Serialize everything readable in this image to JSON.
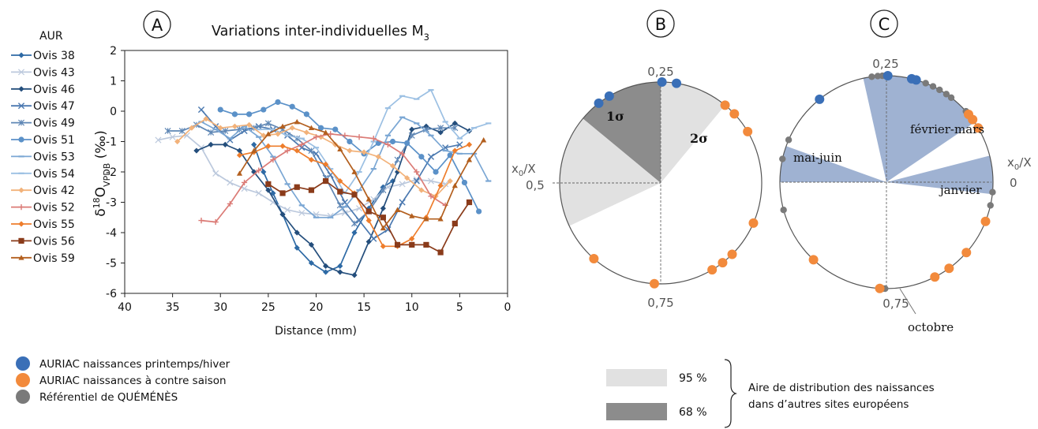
{
  "panel_a": {
    "letter": "A",
    "title": "Variations inter-individuelles M",
    "title_sub": "3",
    "legend_header": "AUR",
    "ylabel_delta": "δ",
    "ylabel_sup": "18",
    "ylabel_o": "O",
    "ylabel_sub": "VPDB",
    "ylabel_unit": " (‰)"
  },
  "panel_b": {
    "letter": "B",
    "label_1s": "1σ",
    "label_2s": "2σ"
  },
  "panel_c": {
    "letter": "C",
    "label_fevmars": "février-mars",
    "label_maijuin": "mai-juin",
    "label_janvier": "janvier",
    "label_octobre": "octobre"
  },
  "circle_labels": {
    "top": "0,25",
    "bottom": "0,75",
    "left_val": "0,5",
    "right_val": "0",
    "x0x_prefix": "x",
    "x0x_sub": "0",
    "x0x_suffix": "/X"
  },
  "colors": {
    "blue_dot": "#3a6fb7",
    "orange_dot": "#f28a3c",
    "grey_dot": "#7a7a7a",
    "light_sector": "#e1e1e1",
    "dark_sector": "#8c8c8c",
    "month_sector": "#9fb2d2"
  },
  "bottom_legend": {
    "blue": "AURIAC naissances printemps/hiver",
    "orange": "AURIAC naissances à contre saison",
    "grey": "Référentiel de QUÉMÉNÈS"
  },
  "area_legend": {
    "p95": "95 %",
    "p68": "68 %",
    "line1": "Aire de distribution des naissances",
    "line2": "dans d’autres sites européens"
  },
  "chart_data": [
    {
      "type": "line",
      "xlabel": "Distance (mm)",
      "xlim": [
        40,
        0
      ],
      "x_reversed": true,
      "ylim": [
        -6,
        2
      ],
      "xticks": [
        40,
        35,
        30,
        25,
        20,
        15,
        10,
        5,
        0
      ],
      "yticks": [
        2,
        1,
        0,
        -1,
        -2,
        -3,
        -4,
        -5,
        -6
      ],
      "legend_placement": "left",
      "grid": false,
      "series": [
        {
          "name": "Ovis 38",
          "color": "#2e6aa5",
          "marker": "diamond",
          "x": [
            26.5,
            25.5,
            24.5,
            23.5,
            22,
            20.5,
            19,
            17.5,
            16,
            14.5,
            13,
            12
          ],
          "y": [
            -1.1,
            -2,
            -2.7,
            -3.4,
            -4.5,
            -5,
            -5.3,
            -5.1,
            -4,
            -3.2,
            -2.5,
            -2.3
          ]
        },
        {
          "name": "Ovis 43",
          "color": "#bcc9dd",
          "marker": "cross",
          "x": [
            36.5,
            35,
            33.5,
            32,
            30.5,
            29,
            27.5,
            26,
            24.5,
            23,
            21.5,
            20,
            18.5,
            17,
            15.5,
            14,
            12.5,
            11,
            9.5,
            8,
            6.5
          ],
          "y": [
            -0.95,
            -0.85,
            -0.8,
            -1.2,
            -2.05,
            -2.35,
            -2.55,
            -2.7,
            -3,
            -3.25,
            -3.35,
            -3.4,
            -3.45,
            -3.35,
            -3.2,
            -2.9,
            -2.5,
            -2.4,
            -2.25,
            -2.3,
            -2.4
          ]
        },
        {
          "name": "Ovis 46",
          "color": "#244e7c",
          "marker": "diamond",
          "x": [
            32.5,
            31,
            29.5,
            28,
            26.5,
            25,
            23.5,
            22,
            20.5,
            19,
            17.5,
            16,
            14.5,
            13,
            11.5,
            10,
            8.5,
            7,
            5.5,
            4
          ],
          "y": [
            -1.3,
            -1.1,
            -1.1,
            -1.3,
            -2,
            -2.6,
            -3.4,
            -4,
            -4.4,
            -5.1,
            -5.3,
            -5.4,
            -4.3,
            -3.2,
            -2,
            -0.6,
            -0.5,
            -0.7,
            -0.4,
            -0.65
          ]
        },
        {
          "name": "Ovis 47",
          "color": "#4b79b0",
          "marker": "x",
          "x": [
            32,
            30.5,
            29,
            27.5,
            26,
            24.5,
            23,
            21.5,
            20,
            18.5,
            17,
            15.5,
            14,
            12.5,
            11,
            9.5,
            8,
            6.5,
            5
          ],
          "y": [
            0.05,
            -0.5,
            -0.95,
            -0.65,
            -0.5,
            -0.6,
            -0.8,
            -1.2,
            -1.4,
            -2.1,
            -3,
            -3.6,
            -4.2,
            -3.9,
            -3,
            -2.3,
            -1.5,
            -1.2,
            -1.1
          ]
        },
        {
          "name": "Ovis 49",
          "color": "#5f87b5",
          "marker": "star",
          "x": [
            35.5,
            34,
            32.5,
            31,
            29.5,
            28,
            26.5,
            25,
            23.5,
            22,
            20.5,
            19,
            17.5,
            16,
            14.5,
            13,
            11.5,
            10,
            8.5,
            7,
            5.5
          ],
          "y": [
            -0.65,
            -0.65,
            -0.45,
            -0.7,
            -0.65,
            -0.6,
            -0.55,
            -0.4,
            -0.6,
            -0.9,
            -1.3,
            -2.2,
            -3.1,
            -3.7,
            -3.3,
            -2.6,
            -1.6,
            -0.8,
            -0.6,
            -0.55,
            -0.55
          ]
        },
        {
          "name": "Ovis 51",
          "color": "#5b91c8",
          "marker": "circle",
          "x": [
            30,
            28.5,
            27,
            25.5,
            24,
            22.5,
            21,
            19.5,
            18,
            16.5,
            15,
            13.5,
            12,
            10.5,
            9,
            7.5,
            6,
            4.5,
            3
          ],
          "y": [
            0.05,
            -0.1,
            -0.1,
            0.05,
            0.3,
            0.15,
            -0.1,
            -0.55,
            -0.6,
            -1,
            -1.4,
            -1.05,
            -1,
            -1.05,
            -1.5,
            -2,
            -1.45,
            -2.35,
            -3.3
          ]
        },
        {
          "name": "Ovis 53",
          "color": "#7ba7d4",
          "marker": "dash",
          "x": [
            32,
            30.5,
            29,
            27.5,
            26,
            24.5,
            23,
            21.5,
            20,
            18.5,
            17,
            15.5,
            14,
            12.5,
            11,
            9.5,
            8,
            6.5,
            5,
            3.5,
            2
          ],
          "y": [
            -0.35,
            -0.6,
            -0.9,
            -0.5,
            -0.85,
            -1.5,
            -2.4,
            -3.1,
            -3.5,
            -3.5,
            -3.15,
            -2.6,
            -1.9,
            -0.8,
            -0.2,
            -0.4,
            -0.8,
            -1.3,
            -1.4,
            -1.4,
            -2.3
          ]
        },
        {
          "name": "Ovis 54",
          "color": "#9cc0e3",
          "marker": "dash",
          "x": [
            26,
            24.5,
            23,
            21.5,
            20,
            18.5,
            17,
            15.5,
            14,
            12.5,
            11,
            9.5,
            8,
            6.5,
            5,
            3.5,
            2
          ],
          "y": [
            -0.6,
            -0.6,
            -0.8,
            -0.9,
            -1.2,
            -1.9,
            -2.7,
            -2,
            -1,
            0.1,
            0.5,
            0.4,
            0.7,
            -0.35,
            -0.9,
            -0.55,
            -0.4
          ]
        },
        {
          "name": "Ovis 42",
          "color": "#f2b27a",
          "marker": "diamond",
          "x": [
            34.5,
            33,
            31.5,
            30,
            28.5,
            27,
            25.5,
            24,
            22.5,
            21,
            19.5,
            18,
            16.5,
            15,
            13.5,
            12,
            10.5,
            9,
            7.5,
            6
          ],
          "y": [
            -1,
            -0.55,
            -0.25,
            -0.55,
            -0.5,
            -0.45,
            -0.8,
            -0.75,
            -0.55,
            -0.7,
            -0.85,
            -1.1,
            -1.3,
            -1.35,
            -1.5,
            -1.8,
            -2.2,
            -2.6,
            -2.8,
            -2.3
          ]
        },
        {
          "name": "Ovis 52",
          "color": "#db7b76",
          "marker": "plus",
          "x": [
            32,
            30.5,
            29,
            27.5,
            26,
            24.5,
            23,
            21.5,
            20,
            18.5,
            17,
            15.5,
            14,
            12.5,
            11,
            9.5,
            8,
            6.5
          ],
          "y": [
            -3.6,
            -3.65,
            -3.05,
            -2.35,
            -1.95,
            -1.6,
            -1.3,
            -1.1,
            -0.85,
            -0.75,
            -0.8,
            -0.85,
            -0.9,
            -1.1,
            -1.4,
            -2,
            -2.8,
            -3.1
          ]
        },
        {
          "name": "Ovis 55",
          "color": "#ee7d2c",
          "marker": "diamond",
          "x": [
            28,
            26.5,
            25,
            23.5,
            22,
            20.5,
            19,
            17.5,
            16,
            14.5,
            13,
            11.5,
            10,
            8.5,
            7,
            5.5,
            4
          ],
          "y": [
            -1.45,
            -1.35,
            -1.15,
            -1.15,
            -1.3,
            -1.6,
            -1.75,
            -2.3,
            -2.7,
            -3.6,
            -4.45,
            -4.45,
            -4.2,
            -3.5,
            -2.45,
            -1.3,
            -1.1
          ]
        },
        {
          "name": "Ovis 56",
          "color": "#8a3b1a",
          "marker": "square",
          "x": [
            25,
            23.5,
            22,
            20.5,
            19,
            17.5,
            16,
            14.5,
            13,
            11.5,
            10,
            8.5,
            7,
            5.5,
            4
          ],
          "y": [
            -2.4,
            -2.7,
            -2.5,
            -2.6,
            -2.3,
            -2.65,
            -2.75,
            -3.3,
            -3.5,
            -4.4,
            -4.4,
            -4.4,
            -4.65,
            -3.7,
            -3
          ]
        },
        {
          "name": "Ovis 59",
          "color": "#b35f1e",
          "marker": "triangle",
          "x": [
            28,
            26.5,
            25,
            23.5,
            22,
            20.5,
            19,
            17.5,
            16,
            14.5,
            13,
            11.5,
            10,
            8.5,
            7,
            5.5,
            4,
            2.5
          ],
          "y": [
            -2.05,
            -1.3,
            -0.75,
            -0.5,
            -0.35,
            -0.55,
            -0.7,
            -1.25,
            -2,
            -2.9,
            -3.85,
            -3.25,
            -3.45,
            -3.55,
            -3.55,
            -2.45,
            -1.6,
            -0.95
          ]
        }
      ]
    },
    {
      "type": "scatter",
      "panel": "B",
      "coordinate": "circular x0/X",
      "sectors": [
        {
          "label": "1σ",
          "level": "68 %",
          "from": 0.25,
          "to": 0.39
        },
        {
          "label": "2σ",
          "level": "95 %",
          "from": 0.14,
          "to": 0.25
        },
        {
          "label": "",
          "level": "95 %",
          "from": 0.39,
          "to": 0.57
        }
      ],
      "points_blue": [
        0.248,
        0.225,
        0.335,
        0.355
      ],
      "points_orange": [
        0.14,
        0.12,
        0.085,
        0.835,
        0.855,
        0.875,
        0.935,
        0.74,
        0.635
      ]
    },
    {
      "type": "scatter",
      "panel": "C",
      "coordinate": "circular x0/X",
      "sectors": [
        {
          "label": "février-mars",
          "from": 0.095,
          "to": 0.285
        },
        {
          "label": "mai-juin",
          "from": 0.445,
          "to": 0.5
        },
        {
          "label": "janvier",
          "from": 0.982,
          "to": 1.04
        }
      ],
      "points_blue": [
        0.248,
        0.212,
        0.205,
        0.358
      ],
      "points_orange": [
        0.11,
        0.1,
        0.085,
        0.825,
        0.85,
        0.885,
        0.94,
        0.74,
        0.63
      ],
      "points_grey": [
        0.272,
        0.263,
        0.256,
        0.19,
        0.178,
        0.167,
        0.155,
        0.146,
        0.116,
        0.108,
        0.435,
        0.465,
        0.542,
        0.985,
        0.965,
        0.745,
        0.748
      ]
    }
  ]
}
